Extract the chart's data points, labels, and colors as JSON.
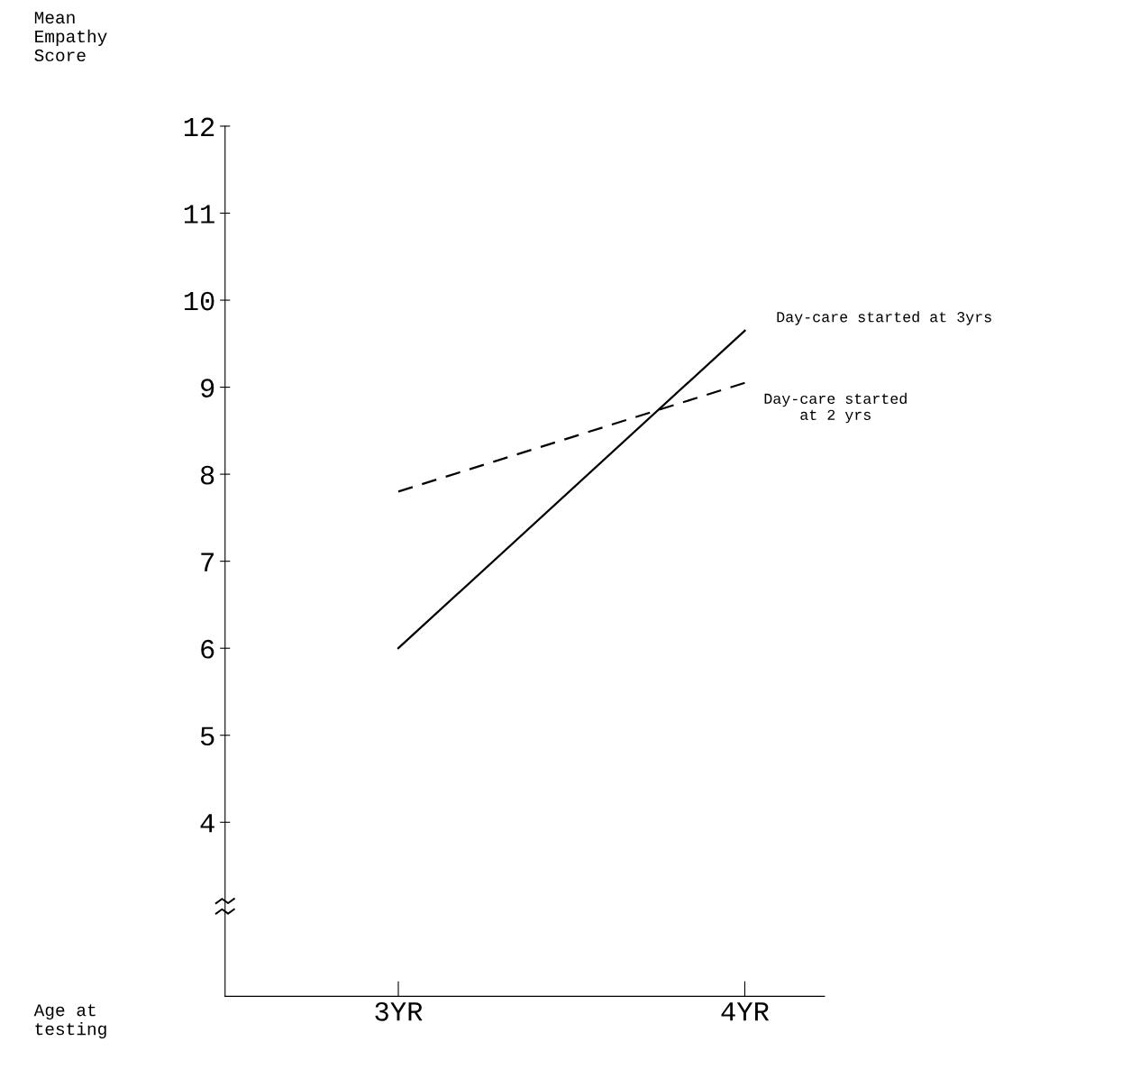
{
  "chart_data": {
    "type": "line",
    "xlabel": "Age at\ntesting",
    "annotations": [
      "Mean\nEmpathy\nScore"
    ],
    "x": [
      3,
      4
    ],
    "series": [
      {
        "name": "Day-care started at 3yrs",
        "color": "#000000",
        "line_style": "solid",
        "values": [
          6.0,
          9.65
        ]
      },
      {
        "name": "Day-care started\nat 2 yrs",
        "color": "#000000",
        "line_style": "dashed",
        "values": [
          7.8,
          9.05
        ]
      }
    ],
    "xlim": [
      2.5,
      4.23
    ],
    "xticks": [
      {
        "value": 3,
        "label": "3YR"
      },
      {
        "value": 4,
        "label": "4YR"
      }
    ],
    "ylim": [
      2,
      12
    ],
    "yticks": [
      4,
      5,
      6,
      7,
      8,
      9,
      10,
      11,
      12
    ],
    "grid": false,
    "legend": false,
    "marker": "none"
  }
}
